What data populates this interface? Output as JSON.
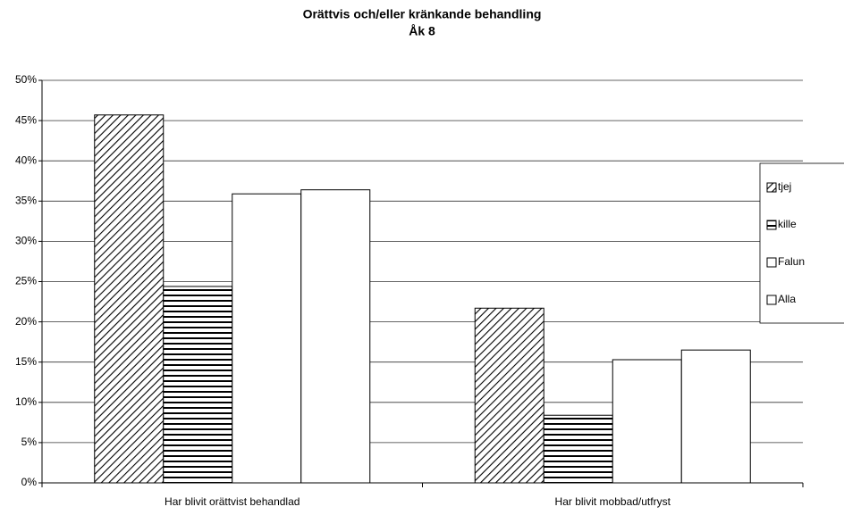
{
  "chart_data": {
    "type": "bar",
    "title": "Orättvis och/eller kränkande behandling",
    "subtitle": "Åk 8",
    "categories": [
      "Har blivit orättvist behandlad",
      "Har blivit mobbad/utfryst"
    ],
    "series": [
      {
        "name": "tjej",
        "color": "#000000",
        "pattern": "diagonal",
        "values": [
          45.7,
          21.7
        ]
      },
      {
        "name": "kille",
        "color": "#000000",
        "pattern": "horizontal",
        "values": [
          24.4,
          8.4
        ]
      },
      {
        "name": "Falun",
        "color": "#ffffff",
        "pattern": "none",
        "values": [
          35.9,
          15.3
        ]
      },
      {
        "name": "Alla",
        "color": "#ffffff",
        "pattern": "none",
        "values": [
          36.4,
          16.5
        ]
      }
    ],
    "ylim": [
      0,
      50
    ],
    "yticks": [
      {
        "value": 0,
        "label": "0%"
      },
      {
        "value": 5,
        "label": "5%"
      },
      {
        "value": 10,
        "label": "10%"
      },
      {
        "value": 15,
        "label": "15%"
      },
      {
        "value": 20,
        "label": "20%"
      },
      {
        "value": 25,
        "label": "25%"
      },
      {
        "value": 30,
        "label": "30%"
      },
      {
        "value": 35,
        "label": "35%"
      },
      {
        "value": 40,
        "label": "40%"
      },
      {
        "value": 45,
        "label": "45%"
      },
      {
        "value": 50,
        "label": "50%"
      }
    ],
    "grid": true,
    "legend": "right"
  }
}
